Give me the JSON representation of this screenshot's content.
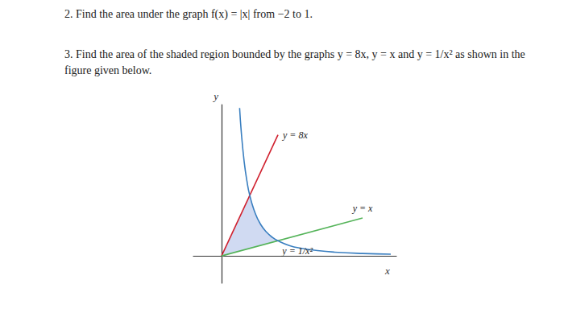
{
  "document": {
    "problems": [
      "2. Find the area under the graph f(x) = |x| from −2 to 1.",
      "3. Find the area of the shaded region bounded by the graphs y = 8x, y = x and y = 1/x² as shown in the figure given below."
    ]
  },
  "chart_data": {
    "type": "line",
    "x_label": "x",
    "y_label": "y",
    "xlim": [
      -0.5,
      3.1
    ],
    "ylim": [
      -1.8,
      10
    ],
    "tick_labels": false,
    "grid": false,
    "series": [
      {
        "name": "y = 8x",
        "color": "#d0202e",
        "x": [
          0,
          1
        ],
        "values": [
          0,
          8
        ]
      },
      {
        "name": "y = x",
        "color": "#55b45a",
        "x": [
          0,
          2.5
        ],
        "values": [
          0,
          2.5
        ]
      },
      {
        "name": "y = 1/x²",
        "color": "#3a7fc0",
        "x": [
          0.32,
          0.35,
          0.4,
          0.45,
          0.5,
          0.6,
          0.7,
          0.8,
          0.9,
          1,
          1.2,
          1.4,
          1.7,
          2,
          2.5,
          3
        ],
        "values": [
          9.77,
          8.16,
          6.25,
          4.94,
          4,
          2.78,
          2.04,
          1.56,
          1.23,
          1,
          0.69,
          0.51,
          0.35,
          0.25,
          0.16,
          0.11
        ]
      }
    ],
    "shaded_region": {
      "color": "#c8d4f0",
      "x": [
        0,
        1,
        0.9,
        0.8,
        0.7,
        0.6,
        0.5
      ],
      "y": [
        0,
        1,
        1.23,
        1.56,
        2.04,
        2.78,
        4
      ]
    }
  }
}
